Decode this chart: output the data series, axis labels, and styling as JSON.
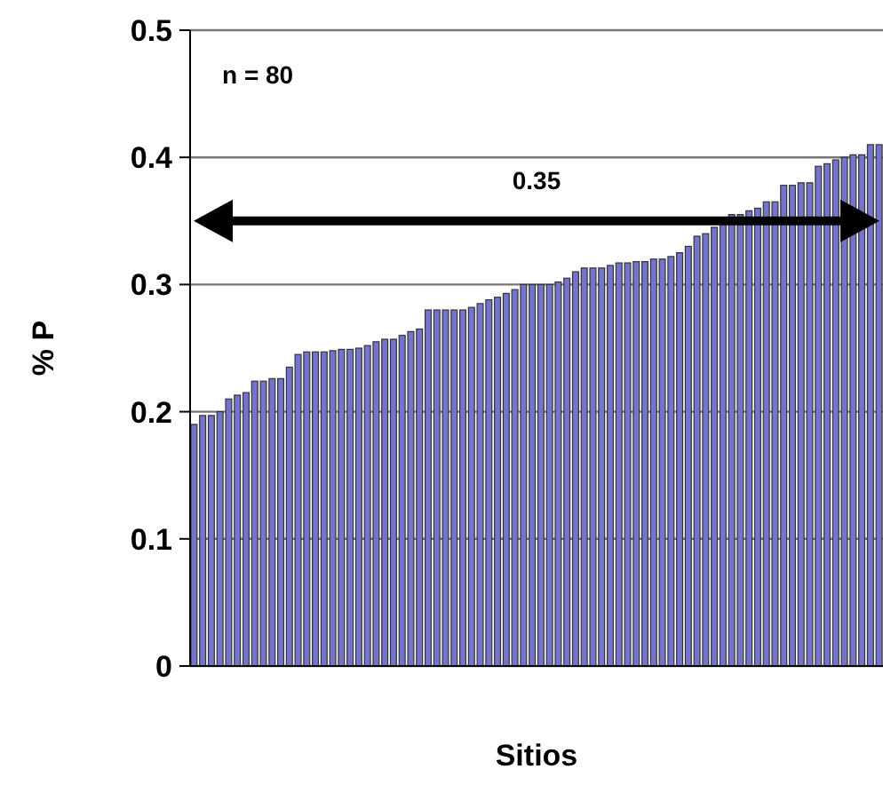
{
  "chart_data": {
    "type": "bar",
    "xlabel": "Sitios",
    "ylabel": "% P",
    "annotations": [
      "n = 80"
    ],
    "categories": [
      null,
      null,
      null,
      null,
      null,
      null,
      null,
      null,
      null,
      null,
      null,
      null,
      null,
      null,
      null,
      null,
      null,
      null,
      null,
      null,
      null,
      null,
      null,
      null,
      null,
      null,
      null,
      null,
      null,
      null,
      null,
      null,
      null,
      null,
      null,
      null,
      null,
      null,
      null,
      null,
      null,
      null,
      null,
      null,
      null,
      null,
      null,
      null,
      null,
      null,
      null,
      null,
      null,
      null,
      null,
      null,
      null,
      null,
      null,
      null,
      null,
      null,
      null,
      null,
      null,
      null,
      null,
      null,
      null,
      null,
      null,
      null,
      null,
      null,
      null,
      null,
      null,
      null,
      null,
      null
    ],
    "values": [
      0.19,
      0.197,
      0.197,
      0.2,
      0.21,
      0.213,
      0.215,
      0.224,
      0.224,
      0.226,
      0.226,
      0.235,
      0.245,
      0.247,
      0.247,
      0.247,
      0.248,
      0.249,
      0.249,
      0.25,
      0.252,
      0.255,
      0.257,
      0.257,
      0.26,
      0.263,
      0.265,
      0.28,
      0.28,
      0.28,
      0.28,
      0.28,
      0.282,
      0.285,
      0.288,
      0.29,
      0.293,
      0.296,
      0.3,
      0.3,
      0.3,
      0.3,
      0.302,
      0.305,
      0.31,
      0.313,
      0.313,
      0.313,
      0.315,
      0.317,
      0.317,
      0.318,
      0.318,
      0.32,
      0.32,
      0.322,
      0.325,
      0.33,
      0.338,
      0.34,
      0.345,
      0.35,
      0.355,
      0.355,
      0.358,
      0.36,
      0.365,
      0.365,
      0.378,
      0.378,
      0.38,
      0.38,
      0.393,
      0.395,
      0.398,
      0.4,
      0.402,
      0.402,
      0.41,
      0.41
    ],
    "color": "#7474cc",
    "ylim": [
      0,
      0.5
    ],
    "yticks": [
      {
        "value": 0,
        "label": "0"
      },
      0.1,
      0.2,
      0.3,
      0.4,
      0.5
    ],
    "grid": "y",
    "ref_lines": [
      {
        "axis": "y",
        "value": 0.35,
        "label": "0.35",
        "color": "#000000"
      }
    ]
  }
}
